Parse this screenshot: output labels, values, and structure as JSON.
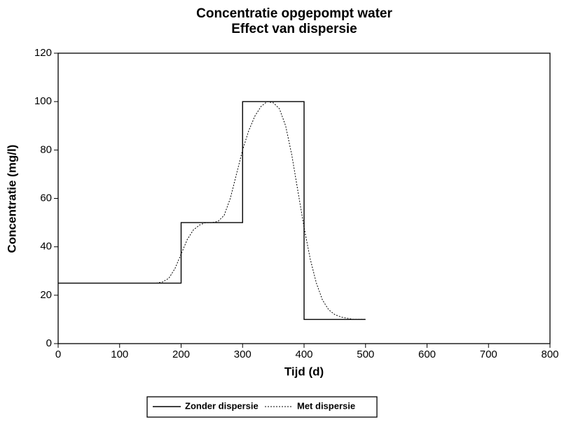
{
  "chart_data": {
    "type": "line",
    "title": "Concentratie opgepompt water",
    "subtitle": "Effect van dispersie",
    "x_label": "Tijd (d)",
    "y_label": "Concentratie (mg/l)",
    "xlim": [
      0,
      800
    ],
    "xticks": [
      0,
      100,
      200,
      300,
      400,
      500,
      600,
      700,
      800
    ],
    "ylim": [
      0,
      120
    ],
    "yticks": [
      0,
      20,
      40,
      60,
      80,
      100,
      120
    ],
    "grid": false,
    "legend": "bottom",
    "series": [
      {
        "name": "Zonder dispersie",
        "color": "#000000",
        "dash": false,
        "x": [
          0,
          200,
          200,
          300,
          300,
          400,
          400,
          500
        ],
        "values": [
          25,
          25,
          50,
          50,
          100,
          100,
          10,
          10
        ]
      },
      {
        "name": "Met dispersie",
        "color": "#000000",
        "dash": true,
        "x": [
          0,
          160,
          170,
          180,
          190,
          200,
          210,
          220,
          230,
          240,
          250,
          260,
          270,
          280,
          290,
          300,
          310,
          320,
          330,
          340,
          350,
          360,
          370,
          380,
          390,
          400,
          410,
          420,
          430,
          440,
          450,
          460,
          470,
          480,
          500
        ],
        "values": [
          25,
          25,
          25.5,
          27,
          31,
          37,
          43,
          47,
          49,
          50,
          50,
          50.5,
          53,
          60,
          70,
          80,
          88,
          94,
          98,
          100,
          99.5,
          97,
          90,
          78,
          63,
          48,
          35,
          25,
          18,
          14,
          12,
          11,
          10.5,
          10,
          10
        ]
      }
    ]
  }
}
